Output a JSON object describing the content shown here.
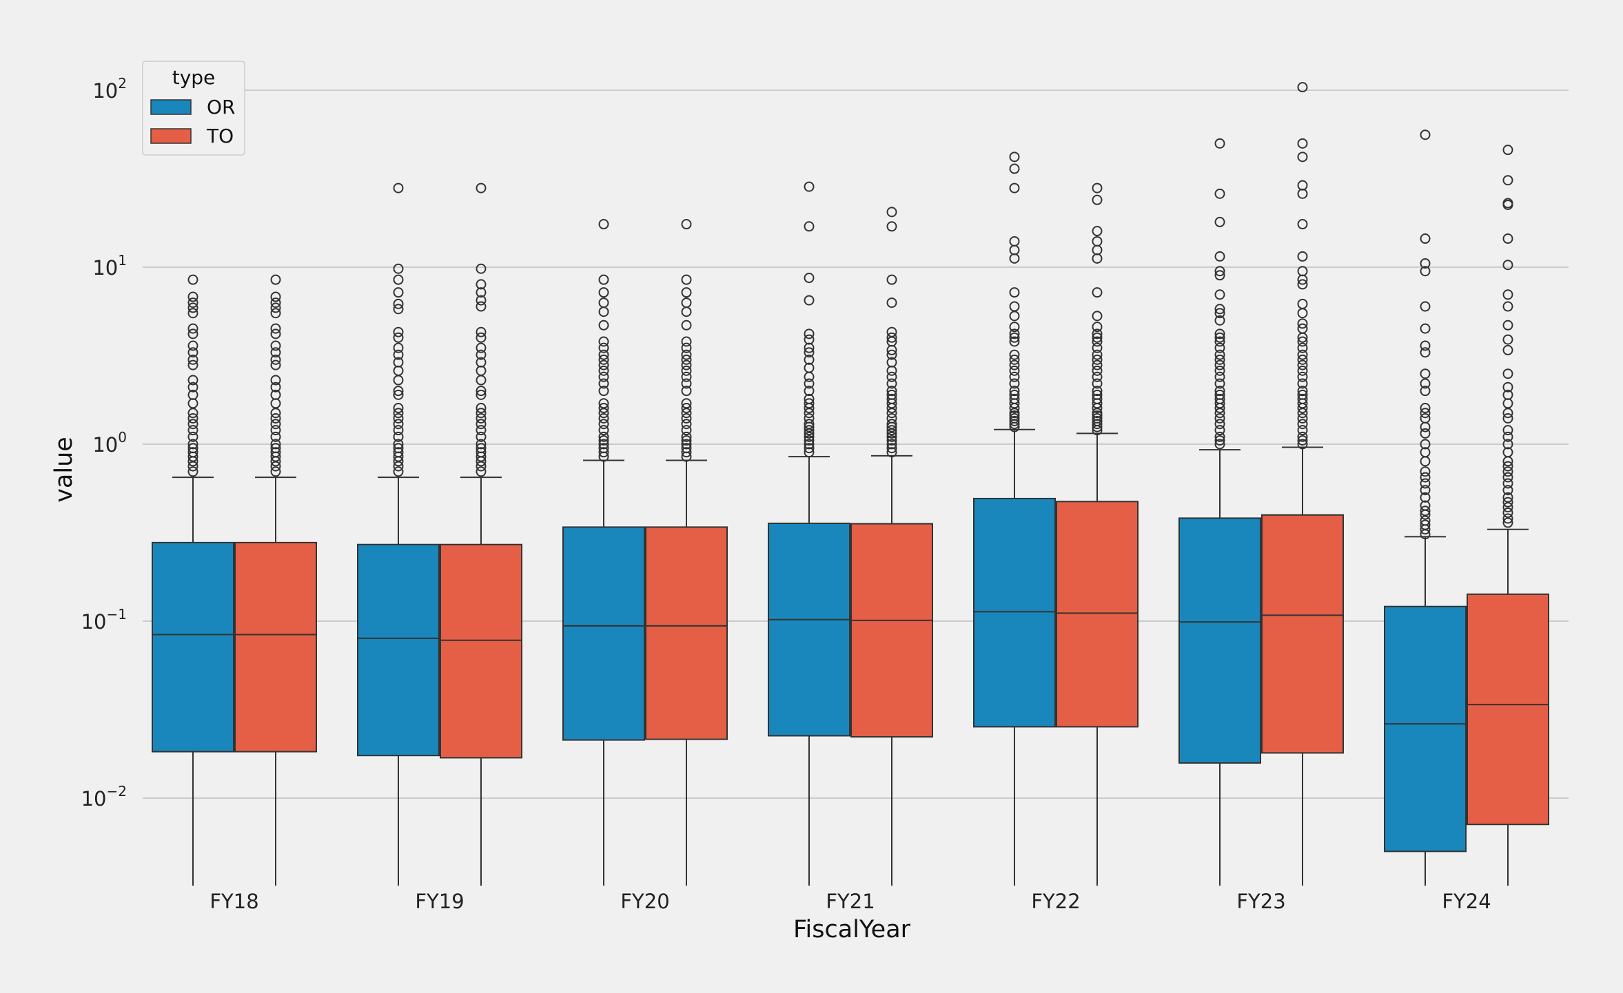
{
  "chart_data": {
    "type": "box",
    "xlabel": "FiscalYear",
    "ylabel": "value",
    "yscale": "log",
    "ylim": [
      0.0032,
      200
    ],
    "yticks": [
      {
        "value": 0.01,
        "base": "10",
        "exp": "−2"
      },
      {
        "value": 0.1,
        "base": "10",
        "exp": "−1"
      },
      {
        "value": 1,
        "base": "10",
        "exp": "0"
      },
      {
        "value": 10,
        "base": "10",
        "exp": "1"
      },
      {
        "value": 100,
        "base": "10",
        "exp": "2"
      }
    ],
    "grid": "horizontal",
    "legend": {
      "title": "type",
      "placement": "top-left"
    },
    "categories": [
      "FY18",
      "FY19",
      "FY20",
      "FY21",
      "FY22",
      "FY23",
      "FY24"
    ],
    "series": [
      {
        "name": "OR",
        "color": "#1a87bc",
        "boxes": [
          {
            "q1": 0.0183,
            "median": 0.084,
            "q3": 0.278,
            "whisker_low": 0.0032,
            "whisker_high": 0.65,
            "outliers": [
              8.5,
              6.8,
              6.3,
              5.9,
              5.5,
              4.5,
              4.2,
              3.6,
              3.3,
              3.0,
              2.8,
              2.3,
              2.1,
              1.9,
              1.7,
              1.5,
              1.4,
              1.3,
              1.2,
              1.1,
              1.0,
              0.95,
              0.9,
              0.85,
              0.8,
              0.75,
              0.7
            ]
          },
          {
            "q1": 0.0174,
            "median": 0.08,
            "q3": 0.271,
            "whisker_low": 0.0032,
            "whisker_high": 0.65,
            "outliers": [
              28,
              9.8,
              8.5,
              7.2,
              6.2,
              5.8,
              4.3,
              4.0,
              3.5,
              3.2,
              2.9,
              2.6,
              2.3,
              2.0,
              1.9,
              1.6,
              1.5,
              1.4,
              1.3,
              1.2,
              1.1,
              1.0,
              0.95,
              0.9,
              0.85,
              0.8,
              0.75,
              0.7
            ]
          },
          {
            "q1": 0.0213,
            "median": 0.094,
            "q3": 0.34,
            "whisker_low": 0.0032,
            "whisker_high": 0.81,
            "outliers": [
              17.5,
              8.5,
              7.2,
              6.3,
              5.6,
              4.7,
              3.8,
              3.5,
              3.2,
              3.0,
              2.8,
              2.6,
              2.4,
              2.2,
              2.0,
              1.7,
              1.6,
              1.5,
              1.4,
              1.3,
              1.2,
              1.1,
              1.05,
              1.0,
              0.95,
              0.9,
              0.85
            ]
          },
          {
            "q1": 0.0225,
            "median": 0.102,
            "q3": 0.357,
            "whisker_low": 0.0032,
            "whisker_high": 0.85,
            "outliers": [
              28.5,
              17,
              8.7,
              6.5,
              4.2,
              3.9,
              3.5,
              3.3,
              3.0,
              2.7,
              2.4,
              2.2,
              2.0,
              1.8,
              1.7,
              1.6,
              1.5,
              1.4,
              1.3,
              1.25,
              1.2,
              1.15,
              1.1,
              1.05,
              1.0,
              0.95,
              0.9
            ]
          },
          {
            "q1": 0.0253,
            "median": 0.113,
            "q3": 0.493,
            "whisker_low": 0.0032,
            "whisker_high": 1.21,
            "outliers": [
              42,
              36,
              28,
              14,
              12.5,
              11.2,
              7.2,
              6.0,
              5.3,
              4.6,
              4.2,
              4.0,
              3.8,
              3.2,
              3.0,
              2.8,
              2.6,
              2.4,
              2.2,
              2.0,
              1.9,
              1.8,
              1.7,
              1.6,
              1.5,
              1.45,
              1.4,
              1.35,
              1.3,
              1.25
            ]
          },
          {
            "q1": 0.0158,
            "median": 0.099,
            "q3": 0.382,
            "whisker_low": 0.0032,
            "whisker_high": 0.93,
            "outliers": [
              50,
              26,
              18,
              11.5,
              9.5,
              9.0,
              7.0,
              5.8,
              5.5,
              5.0,
              4.2,
              4.0,
              3.8,
              3.5,
              3.2,
              3.0,
              2.8,
              2.6,
              2.4,
              2.2,
              2.0,
              1.9,
              1.8,
              1.7,
              1.6,
              1.5,
              1.4,
              1.3,
              1.2,
              1.1,
              1.05,
              1.0
            ]
          },
          {
            "q1": 0.005,
            "median": 0.0263,
            "q3": 0.121,
            "whisker_low": 0.0032,
            "whisker_high": 0.3,
            "outliers": [
              56,
              14.5,
              10.5,
              9.5,
              6.0,
              4.5,
              3.6,
              3.3,
              2.5,
              2.2,
              2.0,
              1.6,
              1.5,
              1.4,
              1.25,
              1.15,
              1.0,
              0.9,
              0.8,
              0.7,
              0.65,
              0.6,
              0.55,
              0.5,
              0.45,
              0.42,
              0.4,
              0.37,
              0.35,
              0.33,
              0.31
            ]
          }
        ]
      },
      {
        "name": "TO",
        "color": "#e55f46",
        "boxes": [
          {
            "q1": 0.0183,
            "median": 0.084,
            "q3": 0.278,
            "whisker_low": 0.0032,
            "whisker_high": 0.65,
            "outliers": [
              8.5,
              6.8,
              6.3,
              5.9,
              5.5,
              4.5,
              4.2,
              3.6,
              3.3,
              3.0,
              2.8,
              2.3,
              2.1,
              1.9,
              1.7,
              1.5,
              1.4,
              1.3,
              1.2,
              1.1,
              1.0,
              0.95,
              0.9,
              0.85,
              0.8,
              0.75,
              0.7
            ]
          },
          {
            "q1": 0.0169,
            "median": 0.078,
            "q3": 0.271,
            "whisker_low": 0.0032,
            "whisker_high": 0.65,
            "outliers": [
              28,
              9.8,
              8.0,
              7.2,
              6.5,
              6.0,
              4.3,
              4.0,
              3.5,
              3.2,
              2.9,
              2.6,
              2.3,
              2.0,
              1.9,
              1.6,
              1.5,
              1.4,
              1.3,
              1.2,
              1.1,
              1.0,
              0.95,
              0.9,
              0.85,
              0.8,
              0.75,
              0.7
            ]
          },
          {
            "q1": 0.0215,
            "median": 0.094,
            "q3": 0.34,
            "whisker_low": 0.0032,
            "whisker_high": 0.81,
            "outliers": [
              17.5,
              8.5,
              7.2,
              6.3,
              5.6,
              4.7,
              3.8,
              3.5,
              3.2,
              3.0,
              2.8,
              2.6,
              2.4,
              2.2,
              2.0,
              1.7,
              1.6,
              1.5,
              1.4,
              1.3,
              1.2,
              1.1,
              1.05,
              1.0,
              0.95,
              0.9,
              0.85
            ]
          },
          {
            "q1": 0.0222,
            "median": 0.101,
            "q3": 0.355,
            "whisker_low": 0.0032,
            "whisker_high": 0.86,
            "outliers": [
              20.5,
              17,
              8.5,
              6.3,
              4.3,
              4.0,
              3.8,
              3.4,
              3.2,
              2.9,
              2.6,
              2.4,
              2.2,
              2.0,
              1.9,
              1.8,
              1.7,
              1.6,
              1.5,
              1.4,
              1.3,
              1.25,
              1.2,
              1.15,
              1.1,
              1.05,
              1.0,
              0.95,
              0.9
            ]
          },
          {
            "q1": 0.0253,
            "median": 0.111,
            "q3": 0.474,
            "whisker_low": 0.0032,
            "whisker_high": 1.15,
            "outliers": [
              28,
              24,
              16,
              14,
              12.5,
              11.2,
              7.2,
              5.3,
              4.6,
              4.2,
              4.0,
              3.8,
              3.5,
              3.2,
              3.0,
              2.8,
              2.6,
              2.4,
              2.2,
              2.0,
              1.9,
              1.8,
              1.7,
              1.6,
              1.5,
              1.45,
              1.4,
              1.35,
              1.3,
              1.25,
              1.2
            ]
          },
          {
            "q1": 0.018,
            "median": 0.108,
            "q3": 0.398,
            "whisker_low": 0.0032,
            "whisker_high": 0.96,
            "outliers": [
              104,
              50,
              42,
              29,
              26,
              17.5,
              11.5,
              9.5,
              8.5,
              8.0,
              6.2,
              5.5,
              4.8,
              4.5,
              4.0,
              3.8,
              3.5,
              3.2,
              3.0,
              2.8,
              2.6,
              2.4,
              2.2,
              2.0,
              1.9,
              1.8,
              1.7,
              1.6,
              1.5,
              1.4,
              1.3,
              1.2,
              1.1,
              1.05,
              1.0
            ]
          },
          {
            "q1": 0.0071,
            "median": 0.0338,
            "q3": 0.142,
            "whisker_low": 0.0032,
            "whisker_high": 0.33,
            "outliers": [
              46,
              31,
              23,
              22.5,
              14.5,
              10.3,
              7.0,
              6.0,
              4.7,
              3.9,
              3.4,
              2.5,
              2.1,
              1.9,
              1.7,
              1.5,
              1.4,
              1.2,
              1.1,
              1.0,
              0.9,
              0.8,
              0.75,
              0.7,
              0.65,
              0.6,
              0.55,
              0.5,
              0.47,
              0.44,
              0.41,
              0.38,
              0.36
            ]
          }
        ]
      }
    ]
  }
}
